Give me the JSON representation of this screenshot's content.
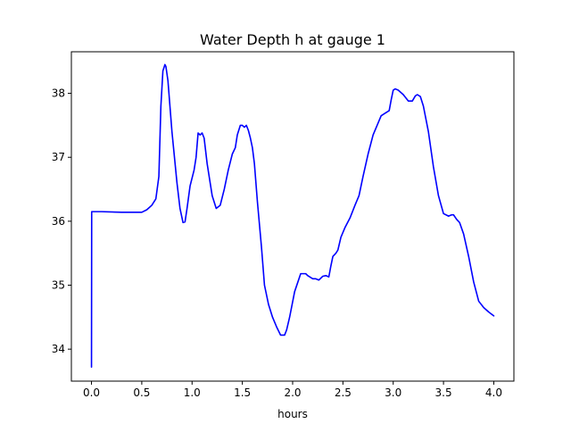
{
  "chart_data": {
    "type": "line",
    "title": "Water Depth h at gauge 1",
    "xlabel": "hours",
    "ylabel": "",
    "xlim": [
      -0.2,
      4.2
    ],
    "ylim": [
      33.5,
      38.65
    ],
    "grid": false,
    "x_ticks": [
      0.0,
      0.5,
      1.0,
      1.5,
      2.0,
      2.5,
      3.0,
      3.5,
      4.0
    ],
    "x_tick_labels": [
      "0.0",
      "0.5",
      "1.0",
      "1.5",
      "2.0",
      "2.5",
      "3.0",
      "3.5",
      "4.0"
    ],
    "y_ticks": [
      34,
      35,
      36,
      37,
      38
    ],
    "y_tick_labels": [
      "34",
      "35",
      "36",
      "37",
      "38"
    ],
    "line_color": "#0000ff",
    "series": [
      {
        "x": [
          0.0,
          0.002,
          0.1,
          0.3,
          0.5,
          0.55,
          0.6,
          0.64,
          0.67,
          0.69,
          0.71,
          0.73,
          0.74,
          0.76,
          0.8,
          0.85,
          0.88,
          0.91,
          0.93,
          0.95,
          0.98,
          1.02,
          1.04,
          1.06,
          1.08,
          1.1,
          1.12,
          1.15,
          1.2,
          1.24,
          1.28,
          1.32,
          1.36,
          1.4,
          1.43,
          1.45,
          1.48,
          1.5,
          1.52,
          1.54,
          1.56,
          1.58,
          1.6,
          1.62,
          1.65,
          1.69,
          1.72,
          1.76,
          1.8,
          1.84,
          1.88,
          1.92,
          1.94,
          1.97,
          2.02,
          2.08,
          2.13,
          2.15,
          2.2,
          2.23,
          2.26,
          2.3,
          2.33,
          2.36,
          2.38,
          2.4,
          2.43,
          2.45,
          2.48,
          2.52,
          2.57,
          2.62,
          2.66,
          2.7,
          2.75,
          2.8,
          2.88,
          2.96,
          2.98,
          3.0,
          3.02,
          3.05,
          3.1,
          3.15,
          3.19,
          3.22,
          3.24,
          3.27,
          3.3,
          3.35,
          3.4,
          3.45,
          3.5,
          3.55,
          3.58,
          3.6,
          3.63,
          3.66,
          3.7,
          3.75,
          3.8,
          3.85,
          3.9,
          3.95,
          4.0
        ],
        "y": [
          33.72,
          36.15,
          36.15,
          36.14,
          36.14,
          36.18,
          36.25,
          36.35,
          36.7,
          37.8,
          38.35,
          38.45,
          38.42,
          38.2,
          37.4,
          36.6,
          36.2,
          35.98,
          35.99,
          36.2,
          36.55,
          36.8,
          37.0,
          37.38,
          37.35,
          37.38,
          37.3,
          36.9,
          36.4,
          36.2,
          36.25,
          36.5,
          36.8,
          37.05,
          37.15,
          37.35,
          37.5,
          37.5,
          37.47,
          37.5,
          37.42,
          37.3,
          37.15,
          36.9,
          36.3,
          35.6,
          35.0,
          34.7,
          34.5,
          34.35,
          34.22,
          34.22,
          34.3,
          34.5,
          34.9,
          35.18,
          35.18,
          35.15,
          35.1,
          35.1,
          35.08,
          35.14,
          35.15,
          35.13,
          35.3,
          35.45,
          35.5,
          35.55,
          35.75,
          35.9,
          36.05,
          36.25,
          36.4,
          36.7,
          37.05,
          37.35,
          37.65,
          37.73,
          37.9,
          38.05,
          38.07,
          38.05,
          37.98,
          37.88,
          37.88,
          37.96,
          37.98,
          37.95,
          37.8,
          37.4,
          36.85,
          36.4,
          36.12,
          36.08,
          36.1,
          36.1,
          36.03,
          35.98,
          35.8,
          35.45,
          35.05,
          34.75,
          34.65,
          34.58,
          34.52
        ]
      }
    ]
  }
}
